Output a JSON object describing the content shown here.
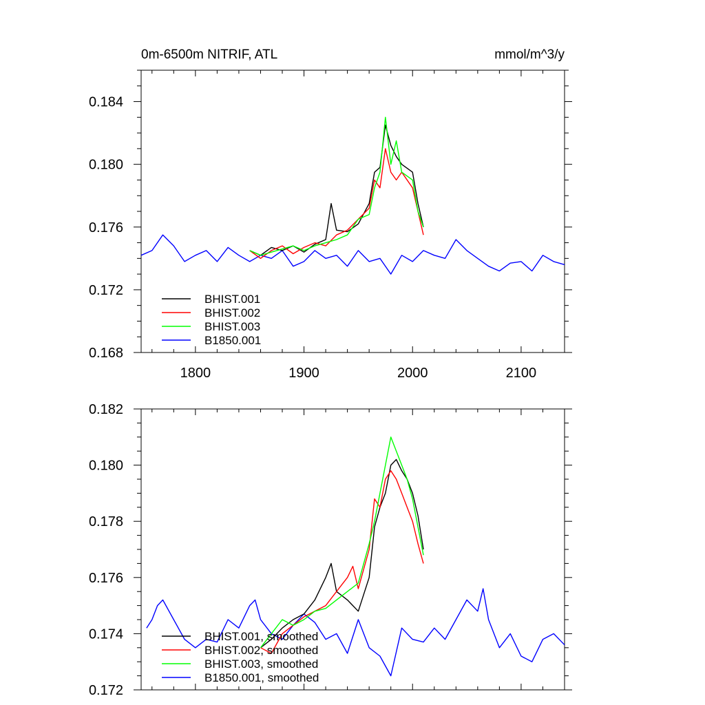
{
  "chart_data": [
    {
      "type": "line",
      "title": "0m-6500m NITRIF, ATL",
      "units": "mmol/m^3/y",
      "xlim": [
        1750,
        2140
      ],
      "ylim": [
        0.168,
        0.186
      ],
      "xticks": [
        1800,
        1900,
        2000,
        2100
      ],
      "xtick_labels": [
        "1800",
        "1900",
        "2000",
        "2100"
      ],
      "yticks": [
        0.168,
        0.172,
        0.176,
        0.18,
        0.184
      ],
      "ytick_labels": [
        "0.168",
        "0.172",
        "0.176",
        "0.180",
        "0.184"
      ],
      "legend_position": "bottom-left",
      "series": [
        {
          "name": "BHIST.001",
          "color": "#000000",
          "x": [
            1850,
            1860,
            1870,
            1880,
            1890,
            1900,
            1910,
            1920,
            1925,
            1930,
            1940,
            1950,
            1960,
            1965,
            1970,
            1975,
            1980,
            1985,
            1990,
            2000,
            2005,
            2010
          ],
          "y": [
            0.1745,
            0.1742,
            0.1747,
            0.1745,
            0.1748,
            0.1744,
            0.1749,
            0.1752,
            0.1775,
            0.1758,
            0.1757,
            0.1762,
            0.1775,
            0.1795,
            0.1798,
            0.1825,
            0.1812,
            0.1805,
            0.18,
            0.1795,
            0.1775,
            0.176
          ]
        },
        {
          "name": "BHIST.002",
          "color": "#ff0000",
          "x": [
            1850,
            1860,
            1870,
            1880,
            1890,
            1900,
            1910,
            1920,
            1930,
            1940,
            1950,
            1960,
            1965,
            1970,
            1975,
            1980,
            1985,
            1990,
            2000,
            2005,
            2010
          ],
          "y": [
            0.1745,
            0.174,
            0.1745,
            0.1748,
            0.1743,
            0.1747,
            0.175,
            0.1748,
            0.1755,
            0.1758,
            0.1765,
            0.1772,
            0.179,
            0.1785,
            0.181,
            0.1795,
            0.179,
            0.1795,
            0.1785,
            0.177,
            0.1755
          ]
        },
        {
          "name": "BHIST.003",
          "color": "#00ff00",
          "x": [
            1850,
            1860,
            1870,
            1880,
            1890,
            1900,
            1910,
            1920,
            1930,
            1940,
            1950,
            1960,
            1965,
            1970,
            1975,
            1980,
            1985,
            1990,
            2000,
            2005,
            2010
          ],
          "y": [
            0.1745,
            0.1742,
            0.1744,
            0.1746,
            0.1748,
            0.1745,
            0.1748,
            0.175,
            0.1752,
            0.1755,
            0.1765,
            0.1768,
            0.1785,
            0.1795,
            0.183,
            0.18,
            0.1815,
            0.1795,
            0.179,
            0.177,
            0.176
          ]
        },
        {
          "name": "B1850.001",
          "color": "#0000ff",
          "x": [
            1750,
            1760,
            1770,
            1780,
            1790,
            1800,
            1810,
            1820,
            1830,
            1840,
            1850,
            1860,
            1870,
            1880,
            1890,
            1900,
            1910,
            1920,
            1930,
            1940,
            1950,
            1960,
            1970,
            1980,
            1990,
            2000,
            2010,
            2020,
            2030,
            2040,
            2050,
            2060,
            2070,
            2080,
            2090,
            2100,
            2110,
            2120,
            2130,
            2140
          ],
          "y": [
            0.1742,
            0.1745,
            0.1755,
            0.1748,
            0.1738,
            0.1742,
            0.1745,
            0.1738,
            0.1747,
            0.1742,
            0.1738,
            0.1742,
            0.174,
            0.1745,
            0.1735,
            0.1738,
            0.1745,
            0.174,
            0.1742,
            0.1735,
            0.1745,
            0.1738,
            0.174,
            0.173,
            0.1742,
            0.1738,
            0.1745,
            0.1742,
            0.174,
            0.1752,
            0.1745,
            0.174,
            0.1735,
            0.1732,
            0.1737,
            0.1738,
            0.1732,
            0.1742,
            0.1738,
            0.1736
          ]
        }
      ]
    },
    {
      "type": "line",
      "title": "",
      "units": "",
      "xlim": [
        1750,
        2140
      ],
      "ylim": [
        0.172,
        0.182
      ],
      "xticks": [
        1800,
        1900,
        2000,
        2100
      ],
      "xtick_labels": [],
      "yticks": [
        0.172,
        0.174,
        0.176,
        0.178,
        0.18,
        0.182
      ],
      "ytick_labels": [
        "0.172",
        "0.174",
        "0.176",
        "0.178",
        "0.180",
        "0.182"
      ],
      "legend_position": "bottom-left",
      "series": [
        {
          "name": "BHIST.001, smoothed",
          "color": "#000000",
          "x": [
            1860,
            1870,
            1880,
            1890,
            1900,
            1910,
            1920,
            1925,
            1930,
            1940,
            1950,
            1960,
            1965,
            1970,
            1975,
            1980,
            1985,
            1990,
            1995,
            2000,
            2005,
            2010
          ],
          "y": [
            0.1735,
            0.1738,
            0.1742,
            0.1745,
            0.1747,
            0.1752,
            0.176,
            0.1765,
            0.1755,
            0.1752,
            0.1748,
            0.176,
            0.1778,
            0.1785,
            0.179,
            0.18,
            0.1802,
            0.1798,
            0.1795,
            0.179,
            0.1782,
            0.177
          ]
        },
        {
          "name": "BHIST.002, smoothed",
          "color": "#ff0000",
          "x": [
            1860,
            1870,
            1880,
            1890,
            1900,
            1910,
            1920,
            1930,
            1940,
            1945,
            1950,
            1960,
            1965,
            1970,
            1975,
            1980,
            1985,
            1990,
            1995,
            2000,
            2005,
            2010
          ],
          "y": [
            0.1735,
            0.1733,
            0.174,
            0.1743,
            0.1746,
            0.1748,
            0.175,
            0.1755,
            0.176,
            0.1764,
            0.1756,
            0.177,
            0.1788,
            0.1785,
            0.1795,
            0.1798,
            0.1795,
            0.179,
            0.1785,
            0.178,
            0.1772,
            0.1765
          ]
        },
        {
          "name": "BHIST.003, smoothed",
          "color": "#00ff00",
          "x": [
            1860,
            1870,
            1880,
            1890,
            1900,
            1910,
            1920,
            1930,
            1940,
            1950,
            1955,
            1960,
            1965,
            1970,
            1975,
            1980,
            1985,
            1990,
            1995,
            2000,
            2005,
            2010
          ],
          "y": [
            0.1735,
            0.174,
            0.1745,
            0.1743,
            0.1745,
            0.1748,
            0.1749,
            0.1752,
            0.1755,
            0.1758,
            0.1765,
            0.1772,
            0.178,
            0.179,
            0.18,
            0.181,
            0.1805,
            0.18,
            0.1795,
            0.1788,
            0.1778,
            0.1768
          ]
        },
        {
          "name": "B1850.001, smoothed",
          "color": "#0000ff",
          "x": [
            1755,
            1760,
            1765,
            1770,
            1780,
            1790,
            1800,
            1810,
            1820,
            1830,
            1840,
            1850,
            1855,
            1860,
            1870,
            1880,
            1890,
            1900,
            1910,
            1920,
            1930,
            1940,
            1950,
            1960,
            1970,
            1980,
            1990,
            2000,
            2010,
            2020,
            2030,
            2040,
            2050,
            2060,
            2065,
            2070,
            2080,
            2090,
            2100,
            2110,
            2120,
            2130,
            2140
          ],
          "y": [
            0.1742,
            0.1745,
            0.175,
            0.1752,
            0.1745,
            0.1738,
            0.1735,
            0.1738,
            0.1737,
            0.1745,
            0.1742,
            0.175,
            0.1752,
            0.1745,
            0.174,
            0.1738,
            0.1743,
            0.1747,
            0.1744,
            0.1738,
            0.174,
            0.1733,
            0.1745,
            0.1735,
            0.1732,
            0.1725,
            0.1742,
            0.1738,
            0.1737,
            0.1742,
            0.1738,
            0.1745,
            0.1752,
            0.1748,
            0.1756,
            0.1745,
            0.1735,
            0.174,
            0.1732,
            0.173,
            0.1738,
            0.174,
            0.1736
          ]
        }
      ]
    }
  ]
}
